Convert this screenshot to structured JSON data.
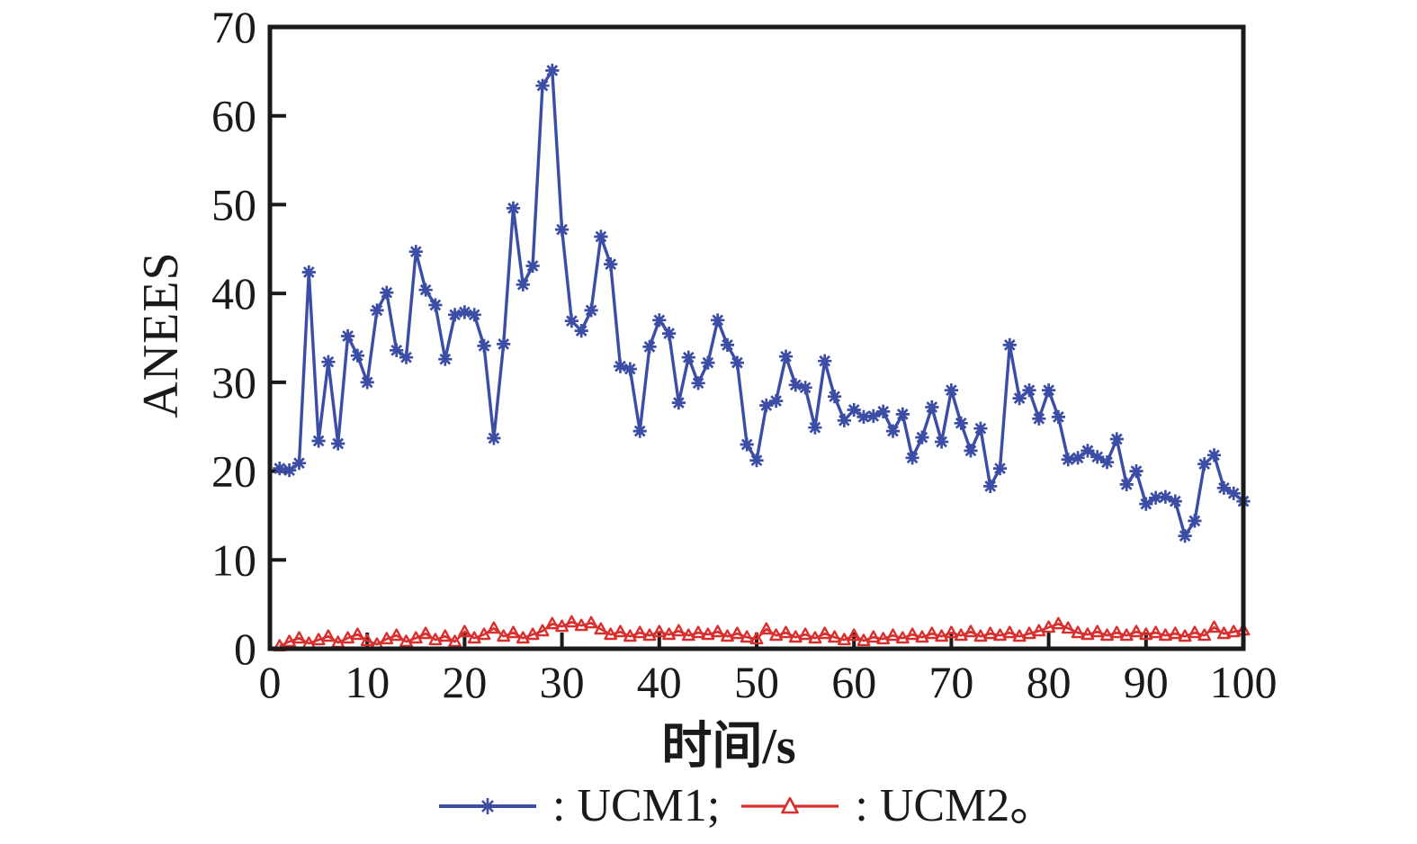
{
  "figure": {
    "y_axis_title": "ANEES",
    "x_axis_title": "时间/s"
  },
  "legend": {
    "ucm1_label": ": UCM1;",
    "ucm2_label": ": UCM2。"
  },
  "colors": {
    "axis": "#1a1a1a",
    "ucm1": "#3c4da5",
    "ucm2": "#d8302f"
  },
  "chart_data": {
    "type": "line",
    "title": "",
    "xlabel": "时间/s",
    "ylabel": "ANEES",
    "xlim": [
      0,
      100
    ],
    "ylim": [
      0,
      70
    ],
    "x_ticks": [
      0,
      10,
      20,
      30,
      40,
      50,
      60,
      70,
      80,
      90,
      100
    ],
    "y_ticks": [
      0,
      10,
      20,
      30,
      40,
      50,
      60,
      70
    ],
    "grid": false,
    "legend_position": "below",
    "series": [
      {
        "name": "UCM1",
        "color": "#3c4da5",
        "marker": "asterisk",
        "x_start": 1,
        "x_step": 1,
        "values": [
          20.3,
          20.1,
          20.9,
          42.4,
          23.4,
          32.3,
          23.1,
          35.2,
          33.0,
          30.0,
          38.1,
          40.1,
          33.6,
          32.8,
          44.7,
          40.4,
          38.7,
          32.6,
          37.6,
          37.9,
          37.6,
          34.1,
          23.7,
          34.3,
          49.6,
          41.0,
          43.1,
          63.4,
          65.1,
          47.2,
          36.9,
          35.8,
          38.1,
          46.4,
          43.3,
          31.8,
          31.5,
          24.5,
          34.0,
          37.0,
          35.5,
          27.7,
          32.8,
          29.9,
          32.2,
          37.0,
          34.2,
          32.2,
          23.0,
          21.2,
          27.4,
          27.9,
          32.9,
          29.7,
          29.4,
          24.9,
          32.4,
          28.4,
          25.7,
          26.9,
          26.1,
          26.2,
          26.7,
          24.5,
          26.4,
          21.5,
          23.8,
          27.2,
          23.3,
          29.1,
          25.4,
          22.3,
          24.8,
          18.3,
          20.3,
          34.2,
          28.2,
          29.1,
          25.9,
          29.1,
          26.1,
          21.3,
          21.5,
          22.3,
          21.6,
          21.0,
          23.6,
          18.5,
          20.0,
          16.3,
          17.0,
          17.1,
          16.6,
          12.7,
          14.4,
          20.8,
          21.8,
          18.1,
          17.5,
          16.6
        ]
      },
      {
        "name": "UCM2",
        "color": "#d8302f",
        "marker": "triangle-open",
        "x_start": 1,
        "x_step": 1,
        "values": [
          0.3,
          0.8,
          1.2,
          0.6,
          1.0,
          1.4,
          0.7,
          1.2,
          1.6,
          0.9,
          0.5,
          1.1,
          1.5,
          0.8,
          1.2,
          1.7,
          1.0,
          1.4,
          0.8,
          1.9,
          1.2,
          1.6,
          2.3,
          1.4,
          1.8,
          1.2,
          1.6,
          2.0,
          2.8,
          2.5,
          3.0,
          2.6,
          2.9,
          2.2,
          1.6,
          1.9,
          1.4,
          1.8,
          1.5,
          1.9,
          1.6,
          2.0,
          1.5,
          1.8,
          1.6,
          1.9,
          1.4,
          1.7,
          1.3,
          1.1,
          2.2,
          1.5,
          1.8,
          1.3,
          1.6,
          1.2,
          1.7,
          1.3,
          1.0,
          1.5,
          0.9,
          1.3,
          1.1,
          1.5,
          1.2,
          1.6,
          1.3,
          1.7,
          1.4,
          1.8,
          1.5,
          1.9,
          1.4,
          1.7,
          1.5,
          1.8,
          1.4,
          1.7,
          2.0,
          2.4,
          2.8,
          2.3,
          1.8,
          1.6,
          1.9,
          1.5,
          1.8,
          1.5,
          1.9,
          1.6,
          1.8,
          1.5,
          1.7,
          1.4,
          1.8,
          1.5,
          2.4,
          1.7,
          1.9,
          2.1
        ]
      }
    ]
  }
}
